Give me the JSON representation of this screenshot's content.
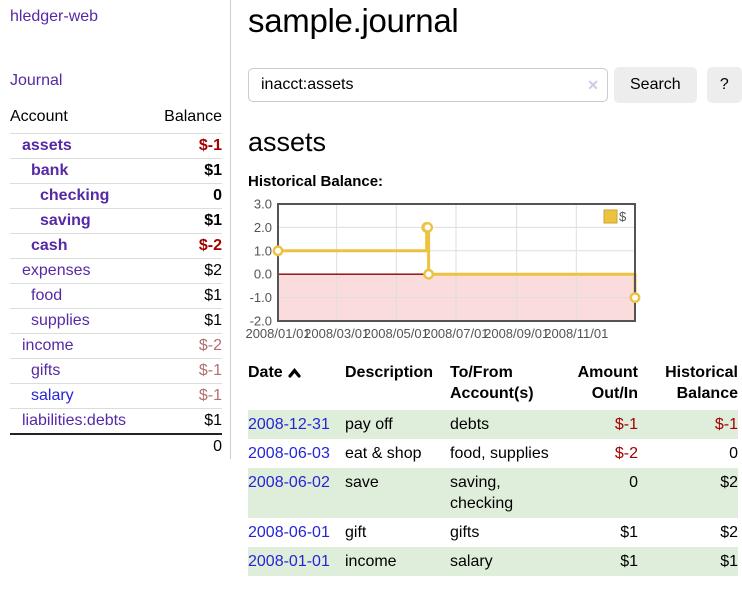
{
  "app": {
    "title": "hledger-web"
  },
  "sidebar": {
    "journal_link": "Journal",
    "accounts": {
      "col_account": "Account",
      "col_balance": "Balance",
      "rows": [
        {
          "label": "assets",
          "balance": "$-1",
          "depth": 1,
          "bold": true,
          "balance_class": "neg",
          "link_color": "purple"
        },
        {
          "label": "bank",
          "balance": "$1",
          "depth": 2,
          "bold": true,
          "balance_class": "plain",
          "link_color": "purple"
        },
        {
          "label": "checking",
          "balance": "0",
          "depth": 3,
          "bold": true,
          "balance_class": "plain",
          "link_color": "purple"
        },
        {
          "label": "saving",
          "balance": "$1",
          "depth": 3,
          "bold": true,
          "balance_class": "plain",
          "link_color": "purple"
        },
        {
          "label": "cash",
          "balance": "$-2",
          "depth": 2,
          "bold": true,
          "balance_class": "neg",
          "link_color": "purple"
        },
        {
          "label": "expenses",
          "balance": "$2",
          "depth": 1,
          "bold": false,
          "balance_class": "plain",
          "link_color": "purple"
        },
        {
          "label": "food",
          "balance": "$1",
          "depth": 2,
          "bold": false,
          "balance_class": "plain",
          "link_color": "purple"
        },
        {
          "label": "supplies",
          "balance": "$1",
          "depth": 2,
          "bold": false,
          "balance_class": "plain",
          "link_color": "purple"
        },
        {
          "label": "income",
          "balance": "$-2",
          "depth": 1,
          "bold": false,
          "balance_class": "rose",
          "link_color": "purple"
        },
        {
          "label": "gifts",
          "balance": "$-1",
          "depth": 2,
          "bold": false,
          "balance_class": "rose",
          "link_color": "purple"
        },
        {
          "label": "salary",
          "balance": "$-1",
          "depth": 2,
          "bold": false,
          "balance_class": "rose",
          "link_color": "blue"
        },
        {
          "label": "liabilities:debts",
          "balance": "$1",
          "depth": 1,
          "bold": false,
          "balance_class": "plain",
          "link_color": "purple"
        }
      ],
      "total": "0"
    }
  },
  "main": {
    "title": "sample.journal",
    "search": {
      "value": "inacct:assets",
      "button_label": "Search",
      "help_label": "?",
      "clear_icon": "✕"
    },
    "account_heading": "assets",
    "chart_label": "Historical Balance:",
    "register": {
      "headers": {
        "date": "Date",
        "description": "Description",
        "accounts": "To/From Account(s)",
        "amount": "Amount Out/In",
        "balance": "Historical Balance"
      },
      "rows": [
        {
          "date": "2008-12-31",
          "description": "pay off",
          "accounts": "debts",
          "amount": "$-1",
          "balance": "$-1",
          "amount_negative": true,
          "balance_negative": true,
          "shaded": true
        },
        {
          "date": "2008-06-03",
          "description": "eat & shop",
          "accounts": "food, supplies",
          "amount": "$-2",
          "balance": "0",
          "amount_negative": true,
          "balance_negative": false,
          "shaded": false
        },
        {
          "date": "2008-06-02",
          "description": "save",
          "accounts": "saving, checking",
          "amount": "0",
          "balance": "$2",
          "amount_negative": false,
          "balance_negative": false,
          "shaded": true
        },
        {
          "date": "2008-06-01",
          "description": "gift",
          "accounts": "gifts",
          "amount": "$1",
          "balance": "$2",
          "amount_negative": false,
          "balance_negative": false,
          "shaded": false
        },
        {
          "date": "2008-01-01",
          "description": "income",
          "accounts": "salary",
          "amount": "$1",
          "balance": "$1",
          "amount_negative": false,
          "balance_negative": false,
          "shaded": true
        }
      ]
    }
  },
  "chart_data": {
    "type": "line",
    "title": "Historical Balance:",
    "step": true,
    "series": [
      {
        "name": "$",
        "color": "#edc240",
        "points": [
          [
            "2008-01-01",
            1
          ],
          [
            "2008-06-01",
            2
          ],
          [
            "2008-06-02",
            2
          ],
          [
            "2008-06-03",
            0
          ],
          [
            "2008-12-31",
            -1
          ]
        ]
      }
    ],
    "x_range": [
      "2008-01-01",
      "2008-12-31"
    ],
    "ylim": [
      -2,
      3
    ],
    "y_ticks": [
      3.0,
      2.0,
      1.0,
      0.0,
      -1.0,
      -2.0
    ],
    "x_ticks": [
      "2008/01/01",
      "2008/03/01",
      "2008/05/01",
      "2008/07/01",
      "2008/09/01",
      "2008/11/01"
    ],
    "grid": true,
    "legend_position": "top-right",
    "negative_region_color": "#fbdcdc",
    "zero_line_color": "#8b0000",
    "border_color": "#545454",
    "grid_color": "#dedede",
    "tick_label_color": "#545454"
  },
  "colors": {
    "accent_purple": "#5629a6",
    "link_blue": "#2525d6",
    "negative_red": "#a40000",
    "negative_rose": "#b66f6f",
    "shaded_row_green": "#dfeeda",
    "chart_line_gold": "#edc240"
  }
}
